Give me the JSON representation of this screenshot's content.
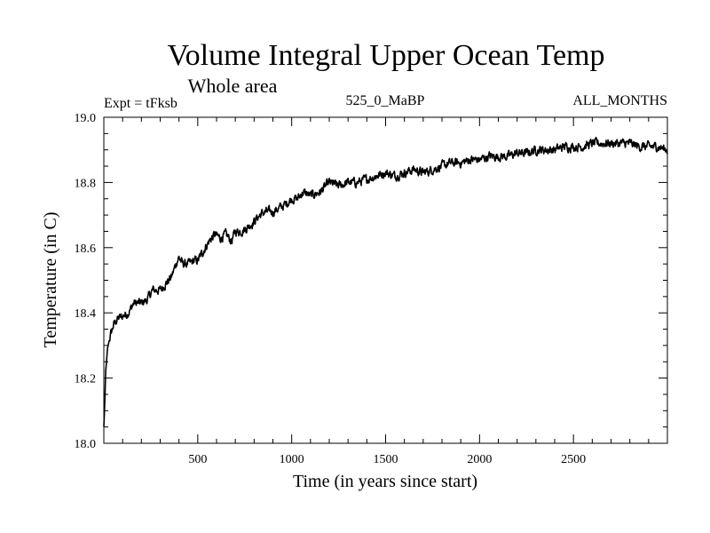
{
  "colors": {
    "background": "#ffffff",
    "line": "#000000",
    "axis": "#000000"
  },
  "chart_data": {
    "type": "line",
    "title": "Volume Integral Upper Ocean Temp",
    "subtitle": "Whole area",
    "left_label": "Expt = tFksb",
    "center_label": "525_0_MaBP",
    "right_label": "ALL_MONTHS",
    "xlabel": "Time (in years since start)",
    "ylabel": "Temperature (in C)",
    "xlim": [
      0,
      3000
    ],
    "ylim": [
      18.0,
      19.0
    ],
    "x_ticks": [
      500,
      1000,
      1500,
      2000,
      2500
    ],
    "x_tick_labels": [
      "500",
      "1000",
      "1500",
      "2000",
      "2500"
    ],
    "y_ticks": [
      18.0,
      18.2,
      18.4,
      18.6,
      18.8,
      19.0
    ],
    "y_tick_labels": [
      "18.0",
      "18.2",
      "18.4",
      "18.6",
      "18.8",
      "19.0"
    ],
    "x_minor_step": 100,
    "y_minor_step": 0.05,
    "series": [
      {
        "name": "Volume Integral Upper Ocean Temp",
        "x": [
          0,
          5,
          10,
          20,
          30,
          50,
          70,
          100,
          130,
          160,
          200,
          230,
          260,
          300,
          330,
          360,
          390,
          400,
          420,
          450,
          480,
          500,
          530,
          560,
          590,
          620,
          650,
          680,
          700,
          730,
          760,
          800,
          830,
          860,
          900,
          930,
          960,
          1000,
          1030,
          1060,
          1100,
          1150,
          1200,
          1250,
          1300,
          1350,
          1400,
          1450,
          1500,
          1550,
          1600,
          1650,
          1700,
          1750,
          1800,
          1850,
          1900,
          1950,
          2000,
          2050,
          2100,
          2150,
          2200,
          2250,
          2300,
          2350,
          2400,
          2450,
          2500,
          2550,
          2600,
          2650,
          2700,
          2750,
          2800,
          2850,
          2900,
          2950,
          3000
        ],
        "y": [
          18.05,
          18.12,
          18.22,
          18.29,
          18.32,
          18.36,
          18.38,
          18.39,
          18.4,
          18.43,
          18.43,
          18.44,
          18.47,
          18.47,
          18.49,
          18.51,
          18.56,
          18.57,
          18.55,
          18.55,
          18.56,
          18.56,
          18.59,
          18.62,
          18.64,
          18.63,
          18.64,
          18.62,
          18.65,
          18.65,
          18.66,
          18.68,
          18.7,
          18.71,
          18.71,
          18.72,
          18.73,
          18.75,
          18.75,
          18.77,
          18.76,
          18.77,
          18.8,
          18.79,
          18.8,
          18.8,
          18.81,
          18.82,
          18.83,
          18.82,
          18.83,
          18.84,
          18.83,
          18.84,
          18.85,
          18.86,
          18.86,
          18.87,
          18.87,
          18.88,
          18.88,
          18.88,
          18.89,
          18.89,
          18.9,
          18.9,
          18.9,
          18.91,
          18.91,
          18.91,
          18.92,
          18.92,
          18.92,
          18.92,
          18.92,
          18.91,
          18.91,
          18.91,
          18.9
        ]
      }
    ]
  }
}
